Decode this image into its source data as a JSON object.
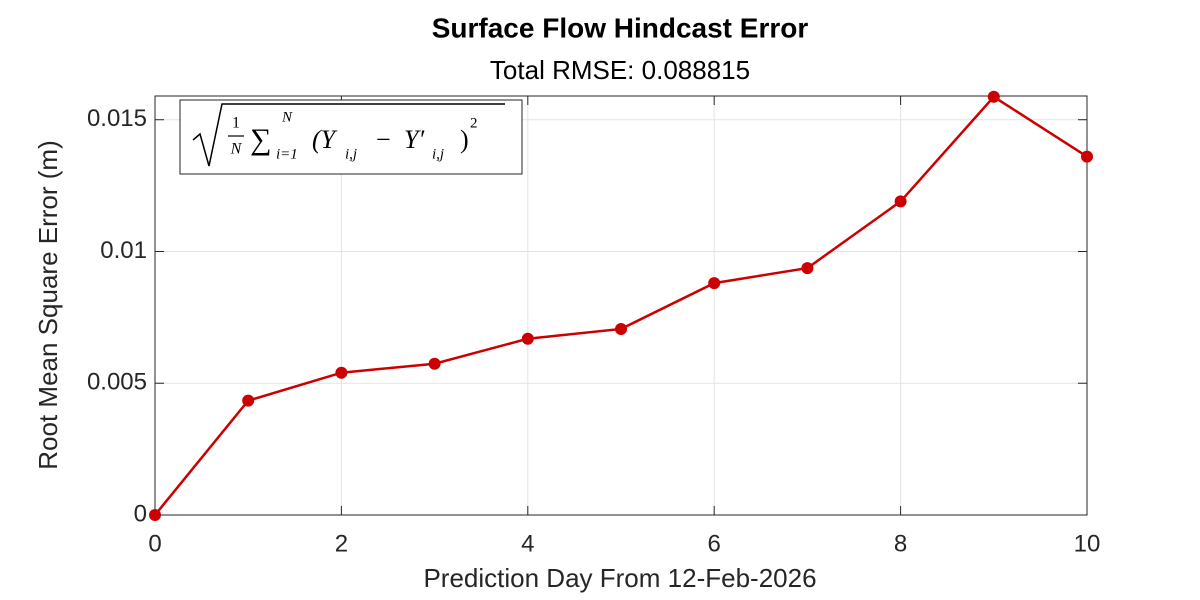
{
  "chart_data": {
    "type": "line",
    "title": "Surface Flow Hindcast Error",
    "subtitle": "Total RMSE: 0.088815",
    "x_label": "Prediction Day From 12-Feb-2026",
    "y_label": "Root Mean Square Error (m)",
    "x": [
      0,
      1,
      2,
      3,
      4,
      5,
      6,
      7,
      8,
      9,
      10
    ],
    "values": [
      0,
      0.00434,
      0.0054,
      0.00574,
      0.00669,
      0.00706,
      0.0088,
      0.00937,
      0.0119,
      0.01587,
      0.0136
    ],
    "color": "#cc0000",
    "xlim": [
      0,
      10
    ],
    "xticks": [
      0,
      2,
      4,
      6,
      8,
      10
    ],
    "ylim": [
      0,
      0.0159
    ],
    "yticks": [
      0,
      0.005,
      0.01,
      0.015
    ],
    "grid": true,
    "annotation": {
      "numerator": "1",
      "denominator": "N",
      "sum": "∑",
      "sum_upper": "N",
      "sum_lower": "i=1",
      "open": "(Y",
      "sub1": "i,j",
      "minus": "−",
      "y_prime": "Y′",
      "sub2": "i,j",
      "close": ")",
      "power": "2"
    }
  }
}
